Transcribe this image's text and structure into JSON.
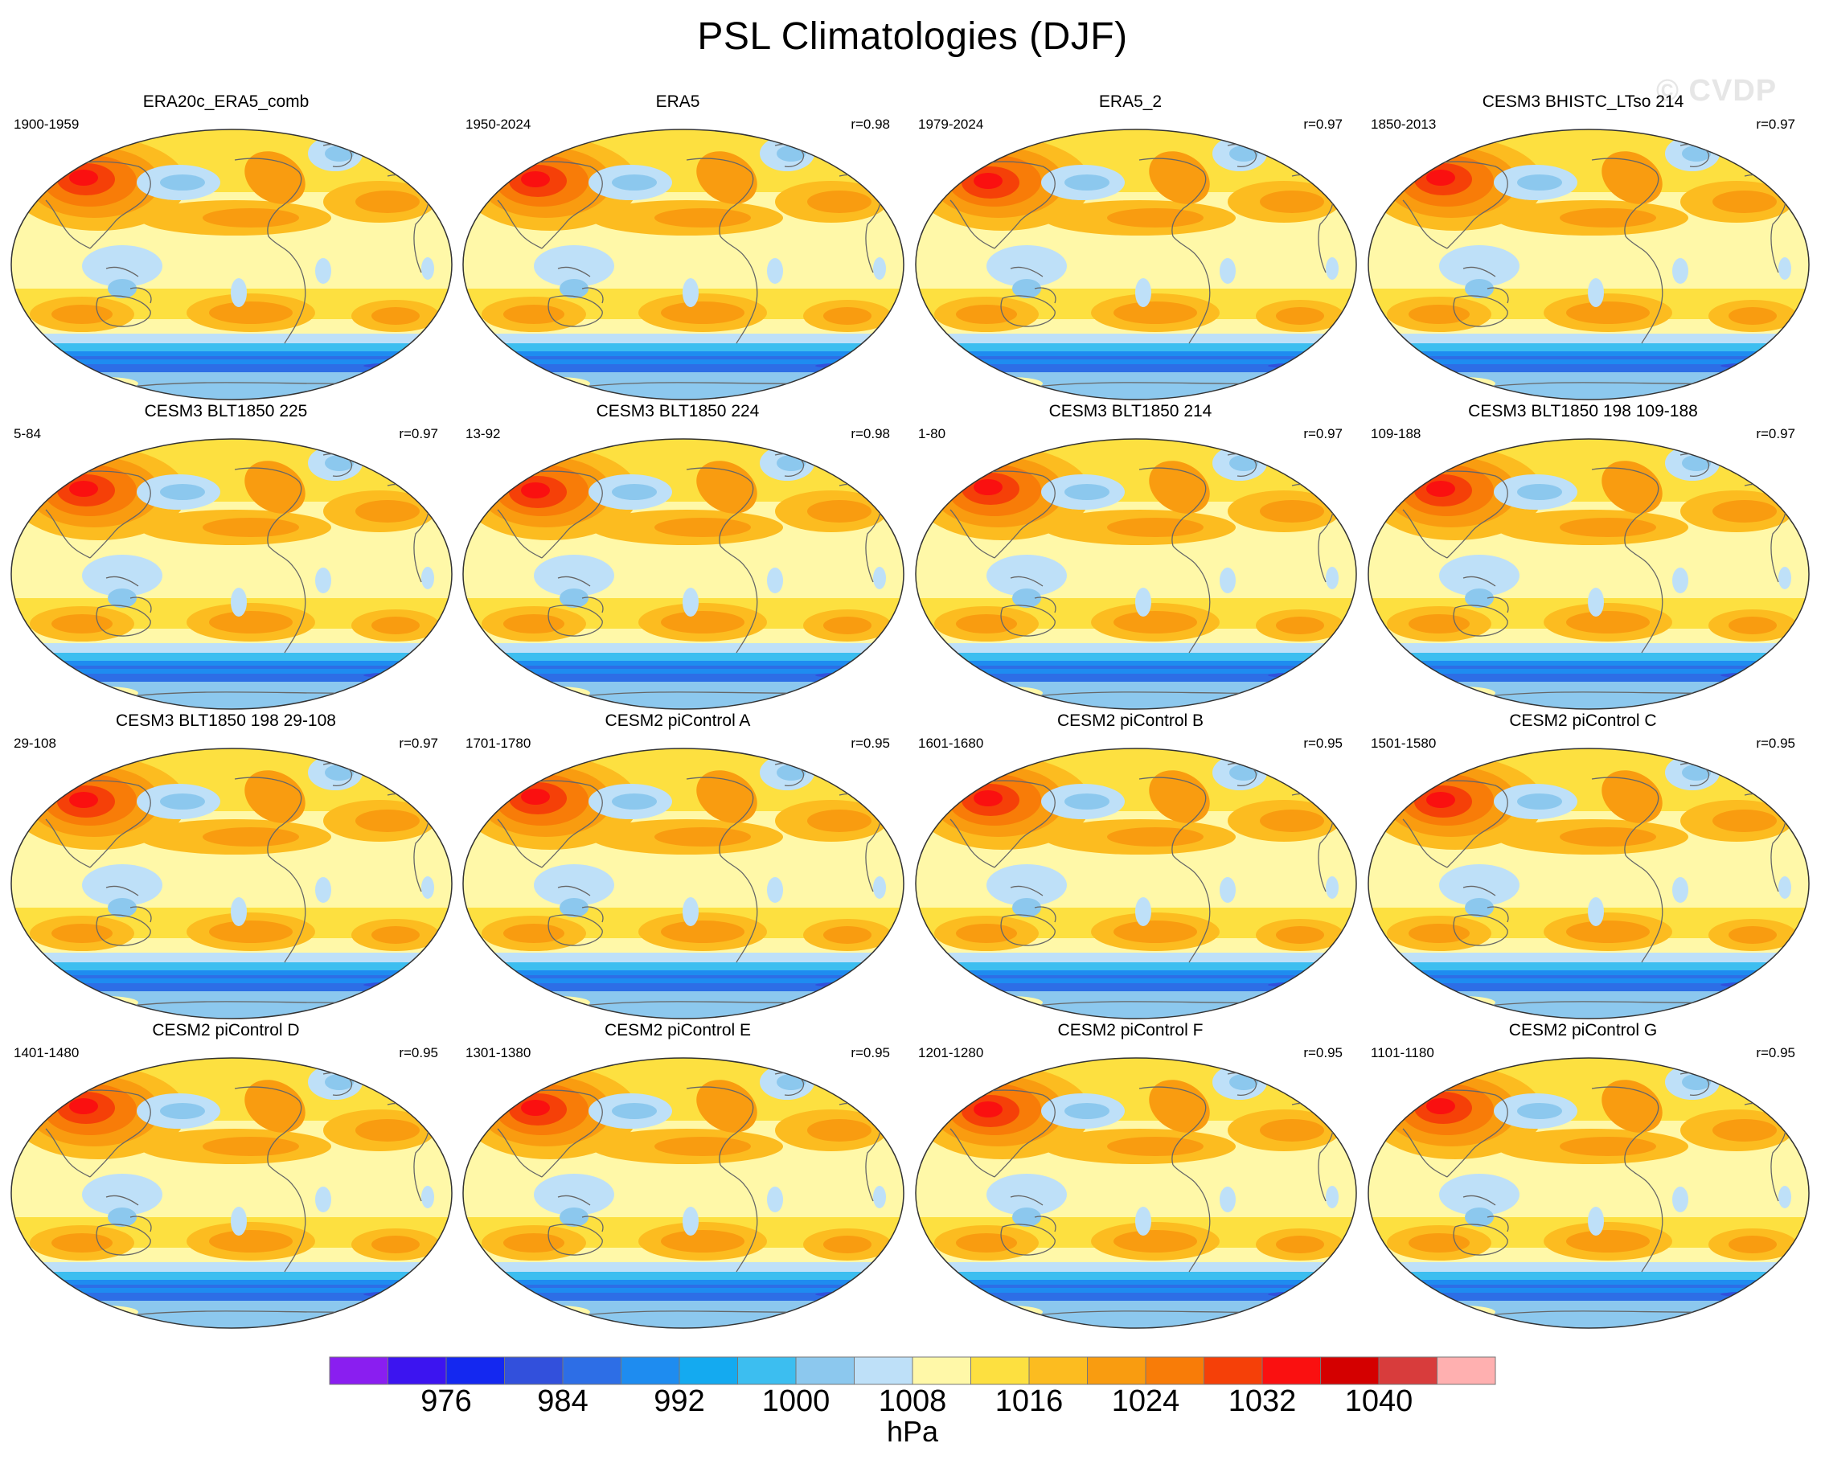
{
  "figure": {
    "title": "PSL Climatologies (DJF)",
    "watermark": "© CVDP"
  },
  "colors": {
    "levels": [
      "#8a1ef0",
      "#3c14f0",
      "#1428f0",
      "#3250dc",
      "#2d6ee6",
      "#1e8cf0",
      "#14aaf0",
      "#3cbef0",
      "#8cc8ee",
      "#bee0f8",
      "#fff8a8",
      "#fde040",
      "#fcbc20",
      "#f99c10",
      "#f87c08",
      "#f54008",
      "#fa1010",
      "#d40000",
      "#d83c3c",
      "#ffb0b0"
    ]
  },
  "colorbar": {
    "labels": [
      "976",
      "984",
      "992",
      "1000",
      "1008",
      "1016",
      "1024",
      "1032",
      "1040"
    ],
    "unit": "hPa"
  },
  "panels": [
    {
      "title": "ERA20c_ERA5_comb",
      "period": "1900-1959",
      "corr": ""
    },
    {
      "title": "ERA5",
      "period": "1950-2024",
      "corr": "r=0.98"
    },
    {
      "title": "ERA5_2",
      "period": "1979-2024",
      "corr": "r=0.97"
    },
    {
      "title": "CESM3 BHISTC_LTso 214",
      "period": "1850-2013",
      "corr": "r=0.97"
    },
    {
      "title": "CESM3 BLT1850 225",
      "period": "5-84",
      "corr": "r=0.97"
    },
    {
      "title": "CESM3 BLT1850 224",
      "period": "13-92",
      "corr": "r=0.98"
    },
    {
      "title": "CESM3 BLT1850 214",
      "period": "1-80",
      "corr": "r=0.97"
    },
    {
      "title": "CESM3 BLT1850 198 109-188",
      "period": "109-188",
      "corr": "r=0.97"
    },
    {
      "title": "CESM3 BLT1850 198 29-108",
      "period": "29-108",
      "corr": "r=0.97"
    },
    {
      "title": "CESM2 piControl A",
      "period": "1701-1780",
      "corr": "r=0.95"
    },
    {
      "title": "CESM2 piControl B",
      "period": "1601-1680",
      "corr": "r=0.95"
    },
    {
      "title": "CESM2 piControl C",
      "period": "1501-1580",
      "corr": "r=0.95"
    },
    {
      "title": "CESM2 piControl D",
      "period": "1401-1480",
      "corr": "r=0.95"
    },
    {
      "title": "CESM2 piControl E",
      "period": "1301-1380",
      "corr": "r=0.95"
    },
    {
      "title": "CESM2 piControl F",
      "period": "1201-1280",
      "corr": "r=0.95"
    },
    {
      "title": "CESM2 piControl G",
      "period": "1101-1180",
      "corr": "r=0.95"
    }
  ]
}
